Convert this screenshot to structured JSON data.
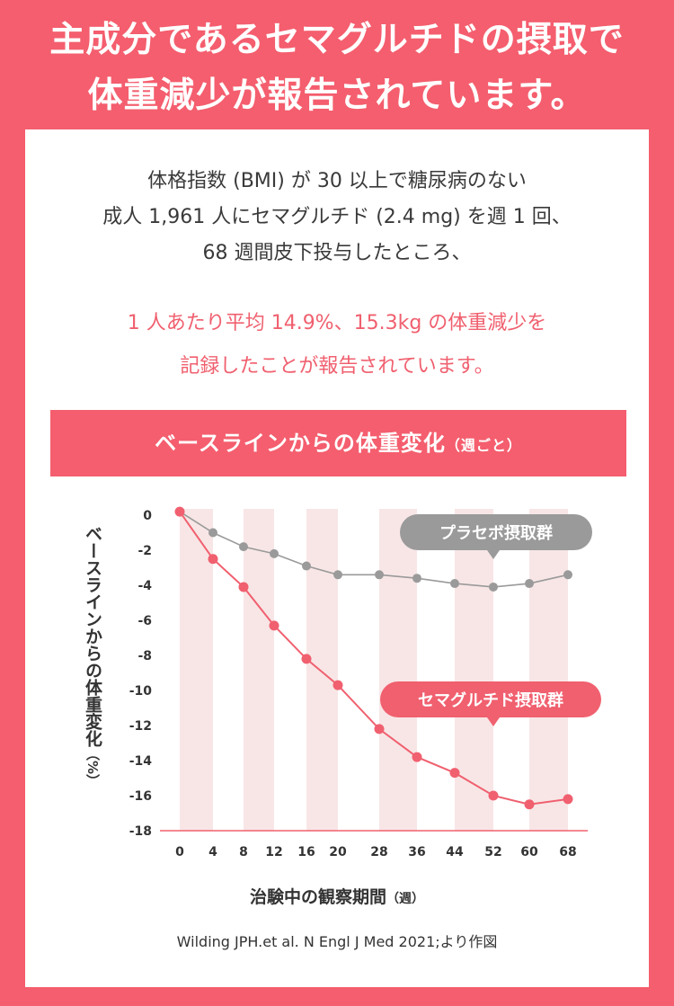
{
  "headline": {
    "line1": "主成分であるセマグルチドの摂取で",
    "line2": "体重減少が報告されています。"
  },
  "intro": {
    "line1": "体格指数 (BMI) が 30 以上で糖尿病のない",
    "line2": "成人 1,961 人にセマグルチド (2.4 mg) を週 1 回、",
    "line3": "68 週間皮下投与したところ、"
  },
  "highlight": {
    "line1": "1 人あたり平均 14.9%、15.3kg の体重減少を",
    "line2": "記録したことが報告されています。"
  },
  "banner": {
    "title": "ベースラインからの体重変化",
    "unit": "（週ごと）"
  },
  "citation": "Wilding JPH.et al. N Engl J Med 2021;より作図",
  "colors": {
    "accent": "#f45e6e",
    "semaglutide": "#f0606f",
    "placebo": "#9a9a9a",
    "band": "#f8e6e6"
  },
  "chart_data": {
    "type": "line",
    "x": [
      0,
      4,
      8,
      12,
      16,
      20,
      28,
      36,
      44,
      52,
      60,
      68
    ],
    "series": [
      {
        "name": "プラセボ摂取群",
        "values": [
          0.2,
          -1.0,
          -1.8,
          -2.2,
          -2.9,
          -3.4,
          -3.4,
          -3.6,
          -3.9,
          -4.1,
          -3.9,
          -3.4
        ]
      },
      {
        "name": "セマグルチド摂取群",
        "values": [
          0.2,
          -2.5,
          -4.1,
          -6.3,
          -8.2,
          -9.7,
          -12.2,
          -13.8,
          -14.7,
          -16.0,
          -16.5,
          -16.2
        ]
      }
    ],
    "xlabel": "治験中の観察期間",
    "xlabel_unit": "（週）",
    "ylabel": "ベースラインからの体重変化",
    "ylabel_unit": "（%）",
    "yticks": [
      0,
      -2,
      -4,
      -6,
      -8,
      -10,
      -12,
      -14,
      -16,
      -18
    ],
    "ylim": [
      -18,
      0.5
    ],
    "bands": [
      [
        0,
        4
      ],
      [
        8,
        12
      ],
      [
        16,
        20
      ],
      [
        28,
        36
      ],
      [
        44,
        52
      ],
      [
        60,
        68
      ]
    ],
    "grid": false
  }
}
